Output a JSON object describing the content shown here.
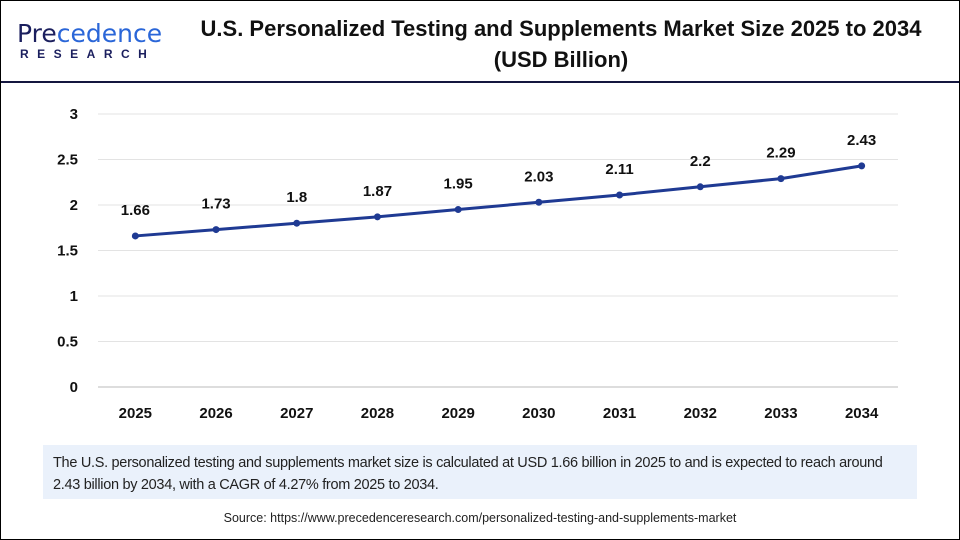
{
  "logo": {
    "text_main": "Precedence",
    "text_sub": "RESEARCH"
  },
  "title": "U.S. Personalized Testing and Supplements Market Size 2025 to 2034 (USD Billion)",
  "note": "The U.S. personalized testing and supplements market size is calculated at USD 1.66 billion in 2025 to and is expected to reach around 2.43 billion by 2034, with a CAGR of 4.27% from 2025 to 2034.",
  "source": "Source: https://www.precedenceresearch.com/personalized-testing-and-supplements-market",
  "colors": {
    "line": "#1f3a93",
    "accent": "#14163f",
    "note_bg": "#eaf1fb"
  },
  "chart_data": {
    "type": "line",
    "categories": [
      "2025",
      "2026",
      "2027",
      "2028",
      "2029",
      "2030",
      "2031",
      "2032",
      "2033",
      "2034"
    ],
    "values": [
      1.66,
      1.73,
      1.8,
      1.87,
      1.95,
      2.03,
      2.11,
      2.2,
      2.29,
      2.43
    ],
    "data_labels": [
      "1.66",
      "1.73",
      "1.8",
      "1.87",
      "1.95",
      "2.03",
      "2.11",
      "2.2",
      "2.29",
      "2.43"
    ],
    "yticks": [
      "0",
      "0.5",
      "1",
      "1.5",
      "2",
      "2.5",
      "3"
    ],
    "ylim": [
      0,
      3
    ],
    "grid": "horizontal",
    "legend": "none"
  }
}
